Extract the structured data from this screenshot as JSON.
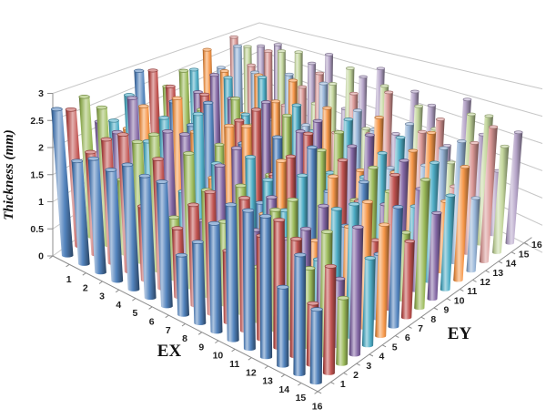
{
  "chart_data": {
    "type": "cylinder-3d-bar",
    "title": "",
    "xlabel": "EX",
    "zlabel": "EY",
    "ylabel": "Thickness (mm)",
    "ylim": [
      0,
      3
    ],
    "grid": true,
    "legend_position": "none",
    "background_color": "#FFFFFF",
    "gridline_color": "#C6C6C6",
    "axis_color": "#8C8C8C",
    "label_color": "#1F1F1F",
    "y_ticks": [
      "0",
      "0.5",
      "1",
      "1.5",
      "2",
      "2.5",
      "3"
    ],
    "x_categories": [
      "1",
      "2",
      "3",
      "4",
      "5",
      "6",
      "7",
      "8",
      "9",
      "10",
      "11",
      "12",
      "13",
      "14",
      "15",
      "16"
    ],
    "z_categories": [
      "1",
      "2",
      "3",
      "4",
      "5",
      "6",
      "7",
      "8",
      "9",
      "10",
      "11",
      "12",
      "13",
      "14",
      "15",
      "16"
    ],
    "series": [
      {
        "name": "EY=1",
        "color": "#4F81BD",
        "values": [
          2.7,
          1.9,
          2.1,
          2.05,
          2.3,
          2.25,
          2.3,
          1.1,
          1.5,
          2.0,
          2.5,
          2.55,
          2.6,
          1.45,
          2.2,
          1.35
        ]
      },
      {
        "name": "EY=2",
        "color": "#C0504D",
        "values": [
          2.6,
          1.95,
          2.35,
          2.6,
          1.4,
          2.45,
          1.3,
          1.9,
          2.3,
          1.35,
          2.5,
          1.95,
          2.4,
          2.2,
          1.15,
          2.0
        ]
      },
      {
        "name": "EY=3",
        "color": "#9BBB59",
        "values": [
          2.75,
          2.7,
          1.45,
          2.35,
          2.65,
          1.2,
          2.6,
          2.05,
          1.6,
          2.45,
          1.05,
          2.3,
          2.65,
          1.5,
          2.35,
          1.25
        ]
      },
      {
        "name": "EY=4",
        "color": "#8064A2",
        "values": [
          2.15,
          2.1,
          2.95,
          1.3,
          2.6,
          2.7,
          1.15,
          2.4,
          2.9,
          1.45,
          2.25,
          1.6,
          1.95,
          2.55,
          1.3,
          2.45
        ]
      },
      {
        "name": "EY=5",
        "color": "#4BACC6",
        "values": [
          2.05,
          2.75,
          1.95,
          2.6,
          1.25,
          3.0,
          2.15,
          1.4,
          2.6,
          2.3,
          1.85,
          2.7,
          1.2,
          2.35,
          2.6,
          1.7
        ]
      },
      {
        "name": "EY=6",
        "color": "#F79646",
        "values": [
          1.75,
          2.4,
          1.2,
          2.9,
          2.35,
          1.55,
          2.8,
          2.95,
          1.3,
          2.55,
          1.9,
          1.25,
          2.7,
          1.85,
          2.5,
          2.2
        ]
      },
      {
        "name": "EY=7",
        "color": "#4F81BD",
        "values": [
          2.9,
          1.35,
          2.55,
          2.2,
          2.85,
          1.6,
          2.3,
          1.2,
          2.75,
          1.5,
          2.85,
          2.1,
          1.55,
          2.6,
          1.3,
          2.4
        ]
      },
      {
        "name": "EY=8",
        "color": "#C0504D",
        "values": [
          2.8,
          2.6,
          1.4,
          2.75,
          1.2,
          2.5,
          2.9,
          1.65,
          2.2,
          2.85,
          1.35,
          2.6,
          1.9,
          1.25,
          2.75,
          1.55
        ]
      },
      {
        "name": "EY=9",
        "color": "#9BBB59",
        "values": [
          2.3,
          2.85,
          2.1,
          1.45,
          2.7,
          2.25,
          1.3,
          2.8,
          1.55,
          2.35,
          2.9,
          1.6,
          2.45,
          2.1,
          1.4,
          2.65
        ]
      },
      {
        "name": "EY=10",
        "color": "#8064A2",
        "values": [
          1.55,
          2.2,
          2.8,
          2.4,
          1.3,
          2.65,
          1.9,
          2.3,
          2.7,
          1.25,
          2.45,
          2.85,
          1.5,
          2.6,
          2.15,
          1.8
        ]
      },
      {
        "name": "EY=11",
        "color": "#4BACC6",
        "values": [
          2.45,
          1.3,
          2.6,
          1.85,
          2.95,
          1.4,
          2.6,
          2.15,
          1.35,
          2.75,
          1.6,
          2.3,
          2.8,
          1.45,
          2.55,
          2.0
        ]
      },
      {
        "name": "EY=12",
        "color": "#F79646",
        "values": [
          2.85,
          2.45,
          1.5,
          2.7,
          2.2,
          2.9,
          1.35,
          2.55,
          1.95,
          1.4,
          2.8,
          1.7,
          2.35,
          2.9,
          1.55,
          2.45
        ]
      },
      {
        "name": "EY=13",
        "color": "#95B3D7",
        "values": [
          2.2,
          3.0,
          2.45,
          1.35,
          2.75,
          1.6,
          2.85,
          1.3,
          2.5,
          2.2,
          1.45,
          2.65,
          1.85,
          2.4,
          2.7,
          1.6
        ]
      },
      {
        "name": "EY=14",
        "color": "#D99694",
        "values": [
          2.95,
          2.3,
          2.9,
          1.55,
          2.25,
          2.8,
          1.4,
          2.6,
          1.75,
          2.95,
          1.5,
          2.3,
          2.75,
          1.35,
          2.5,
          3.0
        ]
      },
      {
        "name": "EY=15",
        "color": "#C3D69B",
        "values": [
          2.5,
          1.45,
          2.75,
          2.9,
          1.6,
          2.35,
          2.95,
          1.5,
          2.8,
          1.4,
          2.6,
          2.2,
          1.55,
          2.85,
          2.95,
          2.4
        ]
      },
      {
        "name": "EY=16",
        "color": "#B3A2C7",
        "values": [
          2.35,
          2.6,
          1.5,
          2.4,
          2.85,
          1.45,
          2.55,
          2.95,
          1.35,
          2.65,
          2.45,
          1.6,
          2.9,
          2.2,
          1.5,
          2.55
        ]
      }
    ]
  }
}
